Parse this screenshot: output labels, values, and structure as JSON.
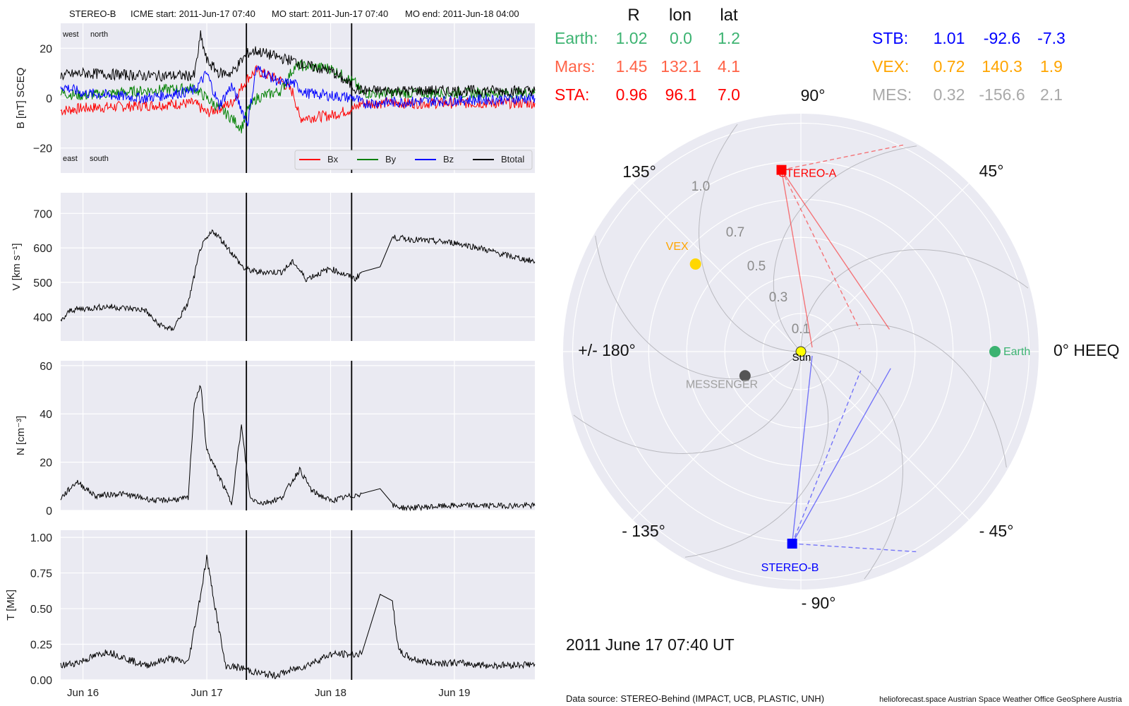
{
  "header": {
    "spacecraft": "STEREO-B",
    "icme_label": "ICME start: 2011-Jun-17 07:40",
    "mo_start_label": "MO start: 2011-Jun-17 07:40",
    "mo_end_label": "MO end: 2011-Jun-18 04:00"
  },
  "positions_table": {
    "col_headers": [
      "R",
      "lon",
      "lat"
    ],
    "rows_left": [
      {
        "name": "Earth:",
        "R": "1.02",
        "lon": "0.0",
        "lat": "1.2",
        "color": "#3cb371"
      },
      {
        "name": "Mars:",
        "R": "1.45",
        "lon": "132.1",
        "lat": "4.1",
        "color": "#ff6347"
      },
      {
        "name": "STA:",
        "R": "0.96",
        "lon": "96.1",
        "lat": "7.0",
        "color": "#ff0000"
      }
    ],
    "rows_right": [
      {
        "name": "STB:",
        "R": "1.01",
        "lon": "-92.6",
        "lat": "-7.3",
        "color": "#0000ff"
      },
      {
        "name": "VEX:",
        "R": "0.72",
        "lon": "140.3",
        "lat": "1.9",
        "color": "#ffa500"
      },
      {
        "name": "MES:",
        "R": "0.32",
        "lon": "-156.6",
        "lat": "2.1",
        "color": "#a9a9a9"
      }
    ]
  },
  "polar": {
    "angle_labels": {
      "a90": "90°",
      "a45": "45°",
      "a135": "135°",
      "a0": "0° HEEQ",
      "a180": "+/- 180°",
      "am45": "- 45°",
      "am90": "- 90°",
      "am135": "- 135°"
    },
    "radial_labels": [
      "0.1",
      "0.3",
      "0.5",
      "0.7",
      "1.0"
    ],
    "bodies": [
      {
        "name": "Sun",
        "r": 0.0,
        "lon": 0.0,
        "color": "#ffff00",
        "label": "Sun"
      },
      {
        "name": "Earth",
        "r": 1.02,
        "lon": 0.0,
        "color": "#3cb371",
        "label": "Earth"
      },
      {
        "name": "VEX",
        "r": 0.72,
        "lon": 140.3,
        "color": "#ffd700",
        "label": "VEX"
      },
      {
        "name": "MESSENGER",
        "r": 0.32,
        "lon": -156.6,
        "color": "#555555",
        "label": "MESSENGER"
      },
      {
        "name": "STEREO-A",
        "r": 0.96,
        "lon": 96.1,
        "color": "#ff0000",
        "label": "STEREO-A"
      },
      {
        "name": "STEREO-B",
        "r": 1.01,
        "lon": -92.6,
        "color": "#0000ff",
        "label": "STEREO-B"
      }
    ],
    "date_label": "2011 June 17  07:40 UT"
  },
  "footer": {
    "data_source": "Data source: STEREO-Behind (IMPACT, UCB, PLASTIC, UNH)",
    "credits": "helioforecast.space   Austrian Space Weather Office   GeoSphere Austria"
  },
  "chart_data": [
    {
      "type": "line",
      "title": "STEREO-B    ICME start: 2011-Jun-17 07:40    MO start: 2011-Jun-17 07:40    MO end: 2011-Jun-18 04:00",
      "ylabel": "B [nT] SCEQ",
      "ylim": [
        -30,
        30
      ],
      "yticks": [
        20,
        0,
        -20
      ],
      "xticks": [
        "Jun 16",
        "Jun 17",
        "Jun 18",
        "Jun 19"
      ],
      "xlim_days": [
        15.82,
        19.65
      ],
      "corner_labels": {
        "top_left": "west",
        "top_right": "north",
        "bottom_left": "east",
        "bottom_right": "south"
      },
      "legend": [
        "Bx",
        "By",
        "Bz",
        "Btotal"
      ],
      "series": [
        {
          "name": "Bx",
          "color": "#ff0000",
          "day": [
            15.82,
            16.0,
            16.5,
            16.9,
            17.0,
            17.2,
            17.33,
            17.4,
            17.6,
            17.7,
            17.75,
            18.0,
            18.2,
            18.25,
            19.65
          ],
          "values": [
            -5,
            -4,
            -3,
            -2,
            -6,
            -2,
            8,
            11,
            7,
            2,
            -8,
            -7,
            -4,
            -2,
            -2
          ]
        },
        {
          "name": "By",
          "color": "#008000",
          "day": [
            15.82,
            16.0,
            16.5,
            16.9,
            17.0,
            17.2,
            17.28,
            17.33,
            17.4,
            17.6,
            17.7,
            17.75,
            18.0,
            18.2,
            18.25,
            19.65
          ],
          "values": [
            2,
            1,
            3,
            4,
            0,
            -8,
            -12,
            -5,
            0,
            3,
            12,
            13,
            12,
            6,
            2,
            2
          ]
        },
        {
          "name": "Bz",
          "color": "#0000ff",
          "day": [
            15.82,
            16.0,
            16.5,
            16.9,
            17.0,
            17.1,
            17.2,
            17.33,
            17.4,
            17.6,
            17.7,
            17.8,
            18.0,
            18.2,
            18.25,
            19.65
          ],
          "values": [
            5,
            2,
            0,
            3,
            10,
            -3,
            5,
            -10,
            12,
            6,
            6,
            2,
            1,
            0,
            -2,
            0
          ]
        },
        {
          "name": "Btotal",
          "color": "#000000",
          "day": [
            15.82,
            16.0,
            16.5,
            16.9,
            16.95,
            17.0,
            17.1,
            17.2,
            17.33,
            17.4,
            17.6,
            17.7,
            17.8,
            18.0,
            18.2,
            18.25,
            19.65
          ],
          "values": [
            9,
            10,
            9,
            9,
            25,
            15,
            10,
            10,
            18,
            19,
            16,
            15,
            13,
            11,
            4,
            3,
            3
          ]
        }
      ]
    },
    {
      "type": "line",
      "ylabel": "V [km s⁻¹]",
      "ylim": [
        330,
        760
      ],
      "yticks": [
        700,
        600,
        500,
        400
      ],
      "xticks": [
        "Jun 16",
        "Jun 17",
        "Jun 18",
        "Jun 19"
      ],
      "xlim_days": [
        15.82,
        19.65
      ],
      "series": [
        {
          "name": "V",
          "color": "#000000",
          "day": [
            15.82,
            15.9,
            16.2,
            16.5,
            16.6,
            16.72,
            16.85,
            16.95,
            17.05,
            17.15,
            17.3,
            17.4,
            17.6,
            17.7,
            17.8,
            18.0,
            18.2,
            18.25,
            18.4,
            18.5,
            18.8,
            19.0,
            19.2,
            19.4,
            19.65
          ],
          "values": [
            385,
            420,
            430,
            420,
            380,
            362,
            440,
            600,
            650,
            610,
            540,
            530,
            530,
            560,
            510,
            540,
            510,
            530,
            545,
            630,
            620,
            615,
            600,
            580,
            560
          ]
        }
      ]
    },
    {
      "type": "line",
      "ylabel": "N [cm⁻³]",
      "ylim": [
        0,
        62
      ],
      "yticks": [
        60,
        40,
        20,
        0
      ],
      "xticks": [
        "Jun 16",
        "Jun 17",
        "Jun 18",
        "Jun 19"
      ],
      "xlim_days": [
        15.82,
        19.65
      ],
      "series": [
        {
          "name": "N",
          "color": "#000000",
          "day": [
            15.82,
            15.95,
            16.1,
            16.3,
            16.6,
            16.85,
            16.9,
            16.95,
            17.0,
            17.1,
            17.2,
            17.28,
            17.35,
            17.45,
            17.6,
            17.75,
            17.85,
            18.0,
            18.25,
            18.4,
            18.5,
            18.6,
            18.8,
            19.0,
            19.65
          ],
          "values": [
            5,
            12,
            6,
            7,
            4,
            5,
            45,
            52,
            25,
            14,
            3,
            35,
            5,
            3,
            5,
            17,
            8,
            4,
            7,
            9,
            2,
            1,
            1.5,
            2,
            2
          ]
        }
      ]
    },
    {
      "type": "line",
      "ylabel": "T [MK]",
      "ylim": [
        0,
        1.05
      ],
      "yticks": [
        1.0,
        0.75,
        0.5,
        0.25,
        0.0
      ],
      "xticks": [
        "Jun 16",
        "Jun 17",
        "Jun 18",
        "Jun 19"
      ],
      "xlim_days": [
        15.82,
        19.65
      ],
      "series": [
        {
          "name": "T",
          "color": "#000000",
          "day": [
            15.82,
            15.95,
            16.2,
            16.5,
            16.7,
            16.85,
            16.95,
            17.0,
            17.06,
            17.15,
            17.3,
            17.4,
            17.55,
            17.8,
            18.0,
            18.25,
            18.4,
            18.5,
            18.55,
            18.65,
            18.8,
            19.0,
            19.3,
            19.65
          ],
          "values": [
            0.1,
            0.12,
            0.2,
            0.1,
            0.15,
            0.12,
            0.6,
            0.86,
            0.55,
            0.1,
            0.08,
            0.05,
            0.03,
            0.1,
            0.18,
            0.18,
            0.6,
            0.55,
            0.2,
            0.15,
            0.12,
            0.12,
            0.1,
            0.11
          ]
        }
      ]
    }
  ],
  "event_lines_days": [
    17.32,
    18.17
  ]
}
